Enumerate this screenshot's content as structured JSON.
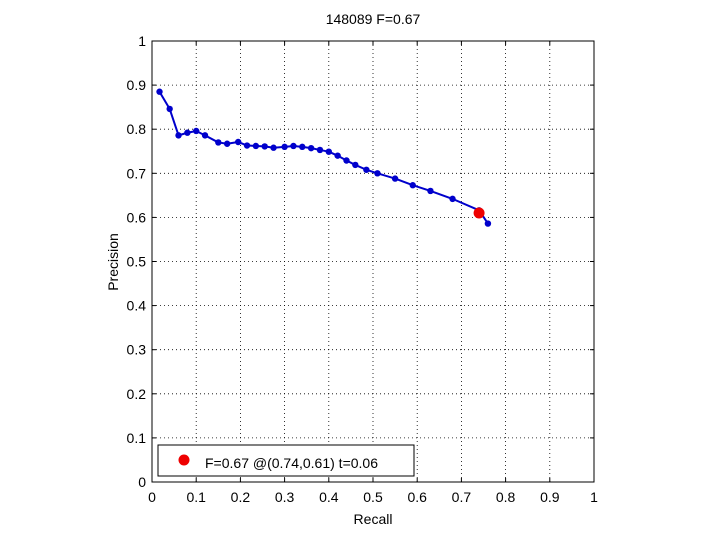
{
  "chart_data": {
    "type": "line",
    "title": "148089 F=0.67",
    "xlabel": "Recall",
    "ylabel": "Precision",
    "xlim": [
      0,
      1
    ],
    "ylim": [
      0,
      1
    ],
    "xticks": [
      0,
      0.1,
      0.2,
      0.3,
      0.4,
      0.5,
      0.6,
      0.7,
      0.8,
      0.9,
      1
    ],
    "yticks": [
      0,
      0.1,
      0.2,
      0.3,
      0.4,
      0.5,
      0.6,
      0.7,
      0.8,
      0.9,
      1
    ],
    "xtick_labels": [
      "0",
      "0.1",
      "0.2",
      "0.3",
      "0.4",
      "0.5",
      "0.6",
      "0.7",
      "0.8",
      "0.9",
      "1"
    ],
    "ytick_labels": [
      "0",
      "0.1",
      "0.2",
      "0.3",
      "0.4",
      "0.5",
      "0.6",
      "0.7",
      "0.8",
      "0.9",
      "1"
    ],
    "grid": true,
    "legend_position": "bottom-left",
    "series": [
      {
        "color": "#0000cc",
        "x": [
          0.017,
          0.04,
          0.06,
          0.08,
          0.1,
          0.12,
          0.15,
          0.17,
          0.195,
          0.215,
          0.235,
          0.255,
          0.275,
          0.3,
          0.32,
          0.34,
          0.36,
          0.38,
          0.4,
          0.42,
          0.44,
          0.46,
          0.485,
          0.51,
          0.55,
          0.59,
          0.63,
          0.68,
          0.74,
          0.76
        ],
        "y": [
          0.885,
          0.846,
          0.786,
          0.792,
          0.796,
          0.786,
          0.77,
          0.767,
          0.771,
          0.763,
          0.762,
          0.761,
          0.758,
          0.76,
          0.762,
          0.76,
          0.757,
          0.753,
          0.749,
          0.74,
          0.729,
          0.719,
          0.708,
          0.7,
          0.688,
          0.673,
          0.66,
          0.642,
          0.616,
          0.586
        ]
      }
    ],
    "best_point": {
      "x": 0.74,
      "y": 0.61,
      "color": "#ee0000"
    },
    "legend_text": "F=0.67 @(0.74,0.61) t=0.06"
  }
}
